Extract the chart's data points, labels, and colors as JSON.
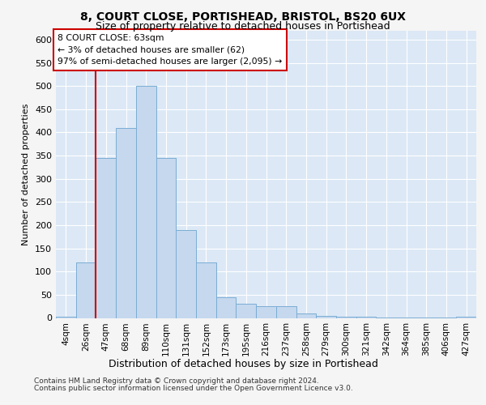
{
  "title": "8, COURT CLOSE, PORTISHEAD, BRISTOL, BS20 6UX",
  "subtitle": "Size of property relative to detached houses in Portishead",
  "xlabel": "Distribution of detached houses by size in Portishead",
  "ylabel": "Number of detached properties",
  "bar_labels": [
    "4sqm",
    "26sqm",
    "47sqm",
    "68sqm",
    "89sqm",
    "110sqm",
    "131sqm",
    "152sqm",
    "173sqm",
    "195sqm",
    "216sqm",
    "237sqm",
    "258sqm",
    "279sqm",
    "300sqm",
    "321sqm",
    "342sqm",
    "364sqm",
    "385sqm",
    "406sqm",
    "427sqm"
  ],
  "bar_values": [
    2,
    120,
    345,
    410,
    500,
    345,
    190,
    120,
    45,
    30,
    25,
    25,
    10,
    5,
    2,
    2,
    1,
    1,
    1,
    1,
    2
  ],
  "bar_color": "#c5d8ee",
  "bar_edgecolor": "#7aadd4",
  "vline_x": 1.5,
  "vline_color": "#cc0000",
  "annotation_text": "8 COURT CLOSE: 63sqm\n← 3% of detached houses are smaller (62)\n97% of semi-detached houses are larger (2,095) →",
  "annotation_facecolor": "#ffffff",
  "annotation_edgecolor": "#cc0000",
  "ylim": [
    0,
    620
  ],
  "yticks": [
    0,
    50,
    100,
    150,
    200,
    250,
    300,
    350,
    400,
    450,
    500,
    550,
    600
  ],
  "footer_line1": "Contains HM Land Registry data © Crown copyright and database right 2024.",
  "footer_line2": "Contains public sector information licensed under the Open Government Licence v3.0.",
  "fig_facecolor": "#f5f5f5",
  "plot_facecolor": "#dce8f5",
  "grid_color": "#ffffff"
}
